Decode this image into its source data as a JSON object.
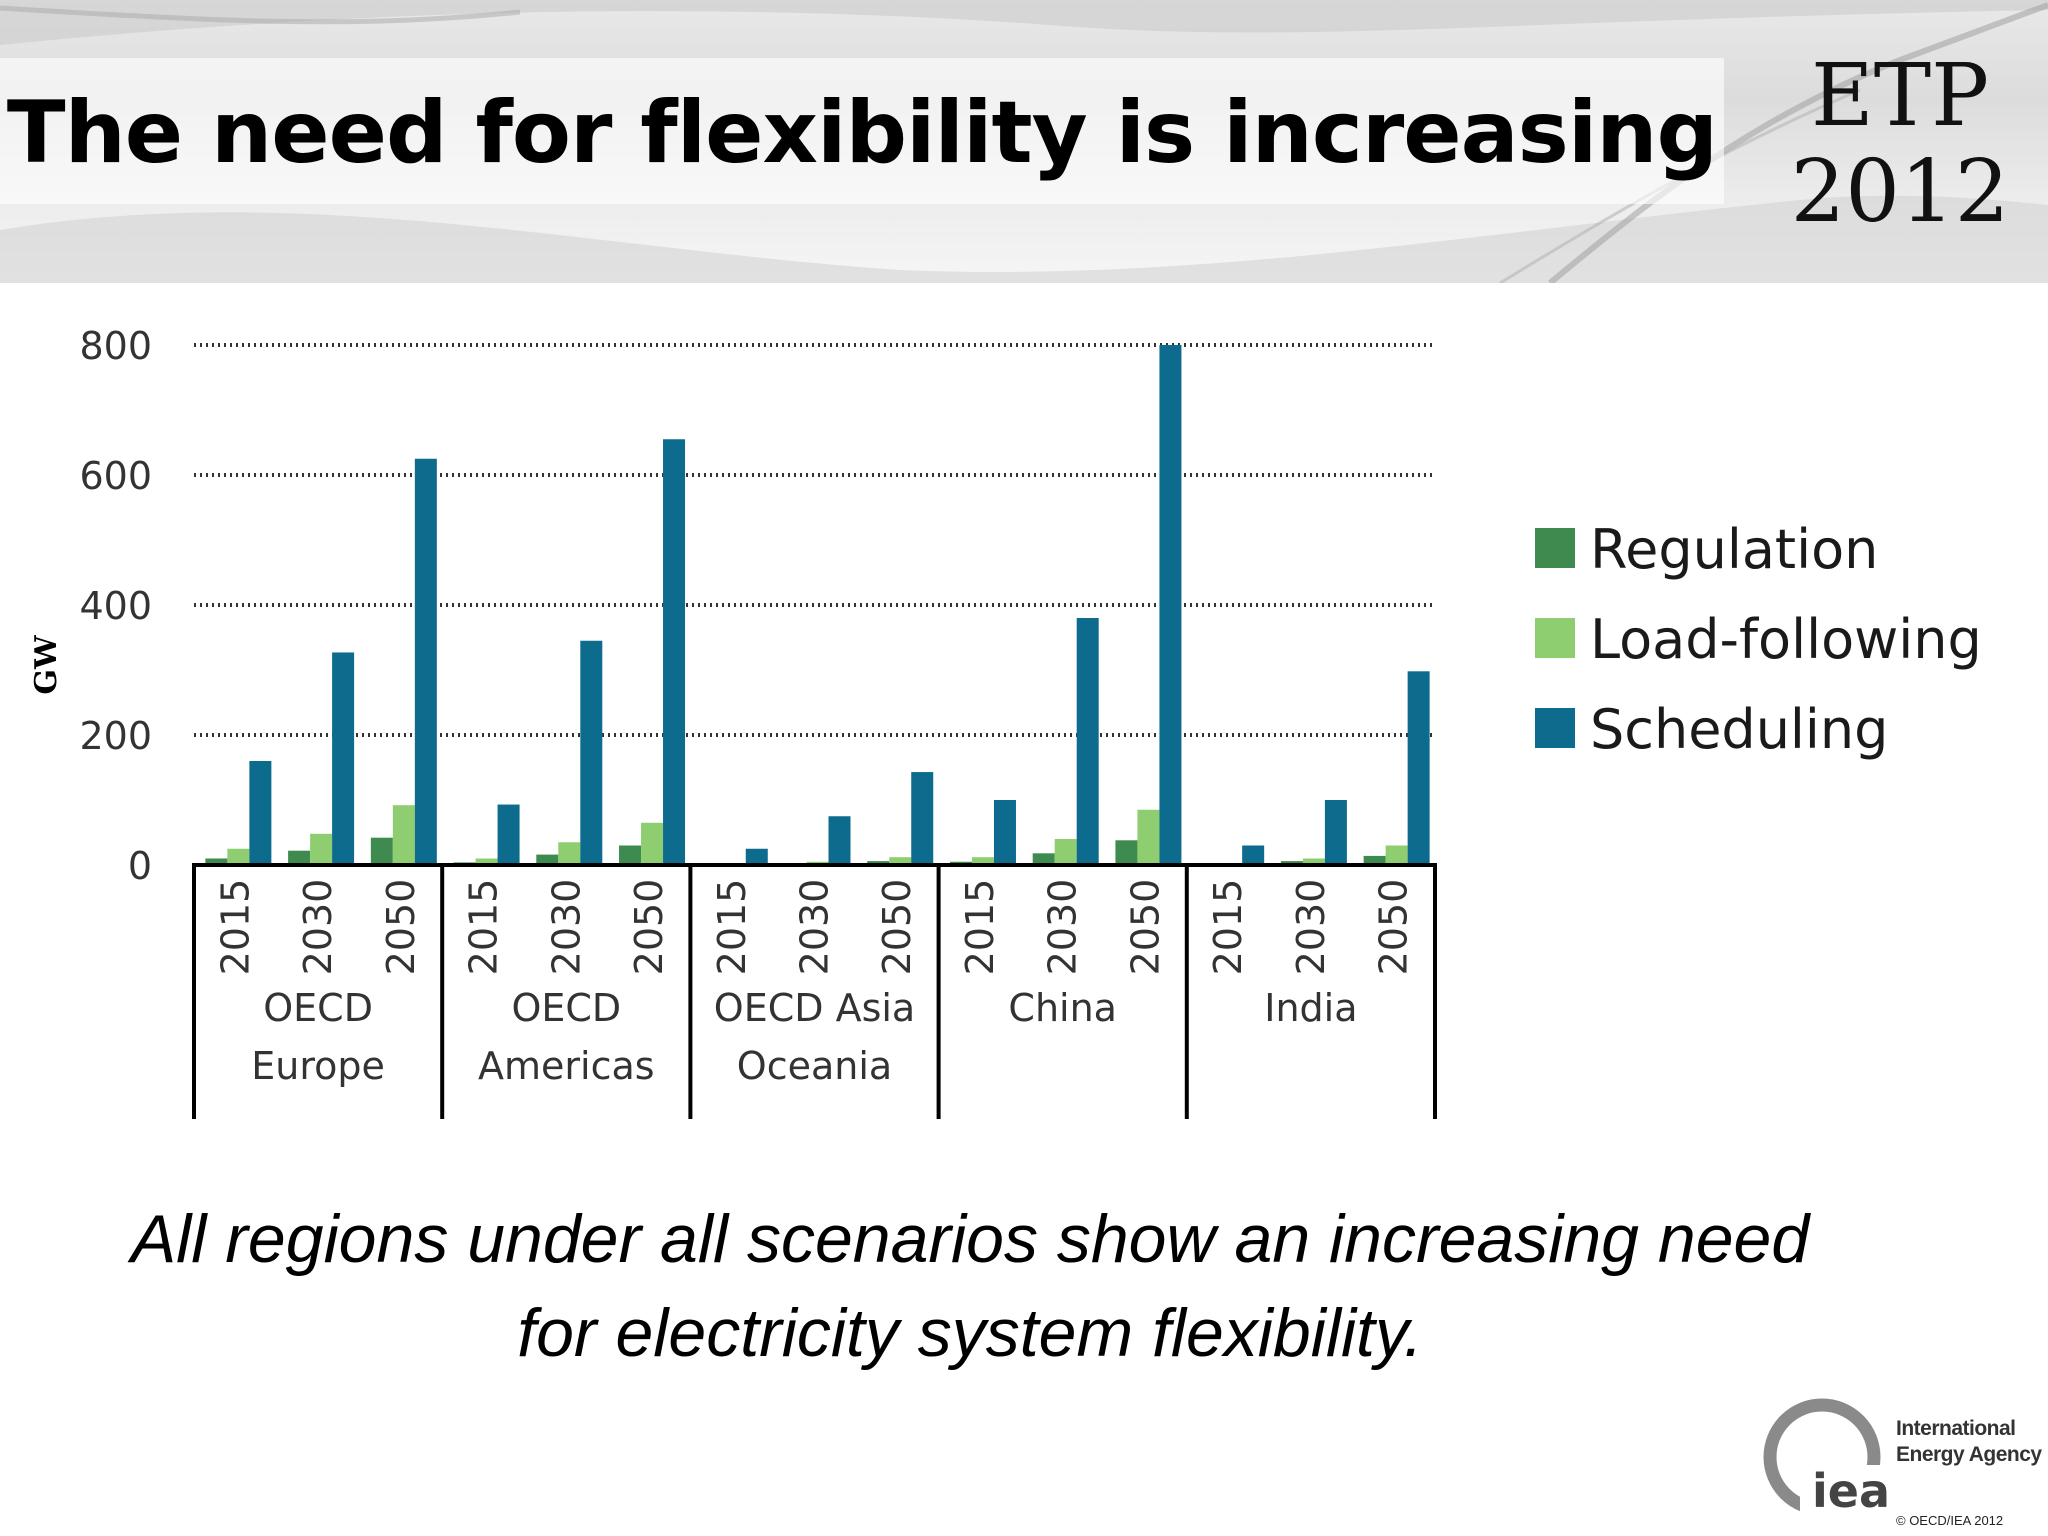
{
  "slide": {
    "title": "The need for flexibility is increasing",
    "badge_line1": "ETP",
    "badge_line2": "2012",
    "caption_line1": "All regions under all scenarios show an increasing need",
    "caption_line2": "for electricity system flexibility.",
    "logo_line1": "International",
    "logo_line2": "Energy Agency",
    "logo_mark": "iea",
    "copyright": "© OECD/IEA 2012"
  },
  "chart_data": {
    "type": "bar",
    "ylabel": "GW",
    "ylim": [
      0,
      800
    ],
    "yticks": [
      0,
      200,
      400,
      600,
      800
    ],
    "grid": "horizontal dotted",
    "legend_placement": "right",
    "groups": [
      {
        "label_lines": [
          "OECD",
          "Europe"
        ],
        "categories": [
          "2015",
          "2030",
          "2050"
        ]
      },
      {
        "label_lines": [
          "OECD",
          "Americas"
        ],
        "categories": [
          "2015",
          "2030",
          "2050"
        ]
      },
      {
        "label_lines": [
          "OECD Asia",
          "Oceania"
        ],
        "categories": [
          "2015",
          "2030",
          "2050"
        ]
      },
      {
        "label_lines": [
          "China"
        ],
        "categories": [
          "2015",
          "2030",
          "2050"
        ]
      },
      {
        "label_lines": [
          "India"
        ],
        "categories": [
          "2015",
          "2030",
          "2050"
        ]
      }
    ],
    "series": [
      {
        "name": "Regulation",
        "color": "#3f8a4f",
        "values": [
          10,
          22,
          42,
          4,
          16,
          30,
          2,
          3,
          6,
          5,
          18,
          38,
          2,
          6,
          14
        ]
      },
      {
        "name": "Load-following",
        "color": "#8fce70",
        "values": [
          25,
          48,
          92,
          10,
          35,
          65,
          3,
          5,
          12,
          12,
          40,
          85,
          3,
          10,
          30
        ]
      },
      {
        "name": "Scheduling",
        "color": "#0d6b8e",
        "values": [
          160,
          327,
          625,
          93,
          345,
          655,
          25,
          75,
          143,
          100,
          380,
          800,
          30,
          100,
          298
        ]
      }
    ]
  }
}
